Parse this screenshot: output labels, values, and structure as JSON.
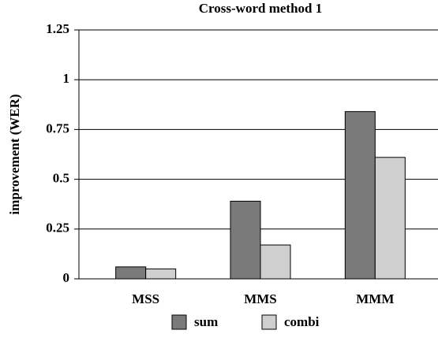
{
  "chart_data": {
    "type": "bar",
    "title": "Cross-word method 1",
    "y_label": "improvement (WER)",
    "categories": [
      "MSS",
      "MMS",
      "MMM"
    ],
    "series": [
      {
        "name": "sum",
        "color": "#7a7a7a",
        "values": [
          0.06,
          0.39,
          0.84
        ]
      },
      {
        "name": "combi",
        "color": "#cfcfcf",
        "values": [
          0.05,
          0.17,
          0.61
        ]
      }
    ],
    "ylim": [
      0,
      1.25
    ],
    "yticks": [
      0,
      0.25,
      0.5,
      0.75,
      1,
      1.25
    ],
    "grid": true,
    "legend": "bottom"
  }
}
